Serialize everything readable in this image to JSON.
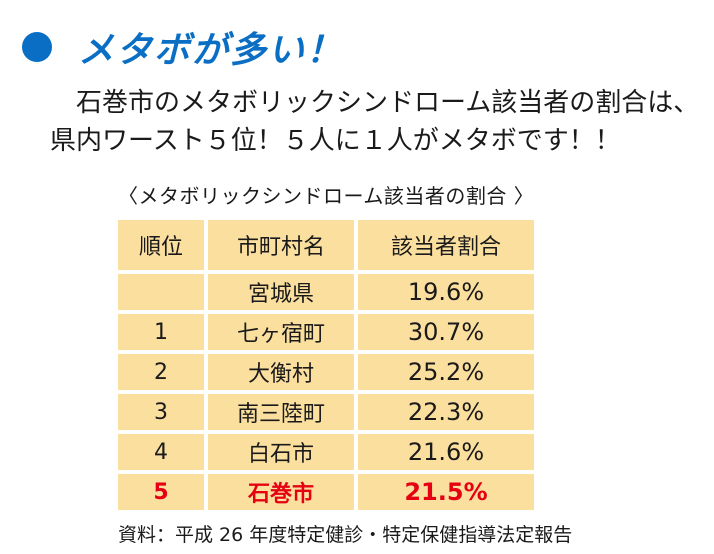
{
  "heading": {
    "text": "メタボが多い！",
    "accent_color": "#0a6fc4",
    "bullet_icon": "filled-circle-icon"
  },
  "lead": {
    "line1": "石巻市のメタボリックシンドローム該当者の割合は、",
    "line2": "県内ワースト５位！５人に１人がメタボです！！"
  },
  "table": {
    "title": "〈メタボリックシンドローム該当者の割合 〉",
    "cell_color": "#fbdf9e",
    "highlight_color": "#e50012",
    "columns": [
      "順位",
      "市町村名",
      "該当者割合"
    ],
    "rows": [
      {
        "rank": "",
        "name": "宮城県",
        "rate": "19.6%"
      },
      {
        "rank": "1",
        "name": "七ヶ宿町",
        "rate": "30.7%"
      },
      {
        "rank": "2",
        "name": "大衡村",
        "rate": "25.2%"
      },
      {
        "rank": "3",
        "name": "南三陸町",
        "rate": "22.3%"
      },
      {
        "rank": "4",
        "name": "白石市",
        "rate": "21.6%"
      },
      {
        "rank": "5",
        "name": "石巻市",
        "rate": "21.5%"
      }
    ]
  },
  "source": "資料：平成 26 年度特定健診・特定保健指導法定報告"
}
